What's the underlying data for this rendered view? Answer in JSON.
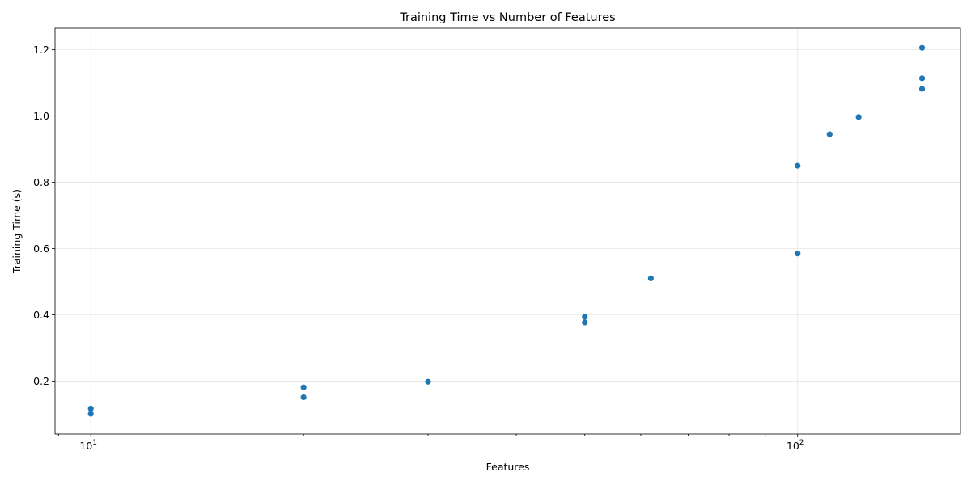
{
  "chart_data": {
    "type": "scatter",
    "title": "Training Time vs Number of Features",
    "xlabel": "Features",
    "ylabel": "Training Time (s)",
    "xscale": "log",
    "xlim": [
      8.9,
      170
    ],
    "ylim": [
      0.04,
      1.265
    ],
    "grid": true,
    "x_ticks": [
      {
        "value": 10,
        "base": "10",
        "exp": "1"
      },
      {
        "value": 100,
        "base": "10",
        "exp": "2"
      }
    ],
    "y_ticks": [
      {
        "value": 0.2,
        "label": "0.2"
      },
      {
        "value": 0.4,
        "label": "0.4"
      },
      {
        "value": 0.6,
        "label": "0.6"
      },
      {
        "value": 0.8,
        "label": "0.8"
      },
      {
        "value": 1.0,
        "label": "1.0"
      },
      {
        "value": 1.2,
        "label": "1.2"
      }
    ],
    "color": "#1f77b4",
    "points": [
      {
        "x": 10,
        "y": 0.101
      },
      {
        "x": 10,
        "y": 0.117
      },
      {
        "x": 20,
        "y": 0.151
      },
      {
        "x": 20,
        "y": 0.181
      },
      {
        "x": 30,
        "y": 0.198
      },
      {
        "x": 50,
        "y": 0.377
      },
      {
        "x": 50,
        "y": 0.394
      },
      {
        "x": 62,
        "y": 0.51
      },
      {
        "x": 100,
        "y": 0.585
      },
      {
        "x": 100,
        "y": 0.85
      },
      {
        "x": 111,
        "y": 0.945
      },
      {
        "x": 122,
        "y": 0.997
      },
      {
        "x": 150,
        "y": 1.082
      },
      {
        "x": 150,
        "y": 1.114
      },
      {
        "x": 150,
        "y": 1.206
      }
    ]
  }
}
